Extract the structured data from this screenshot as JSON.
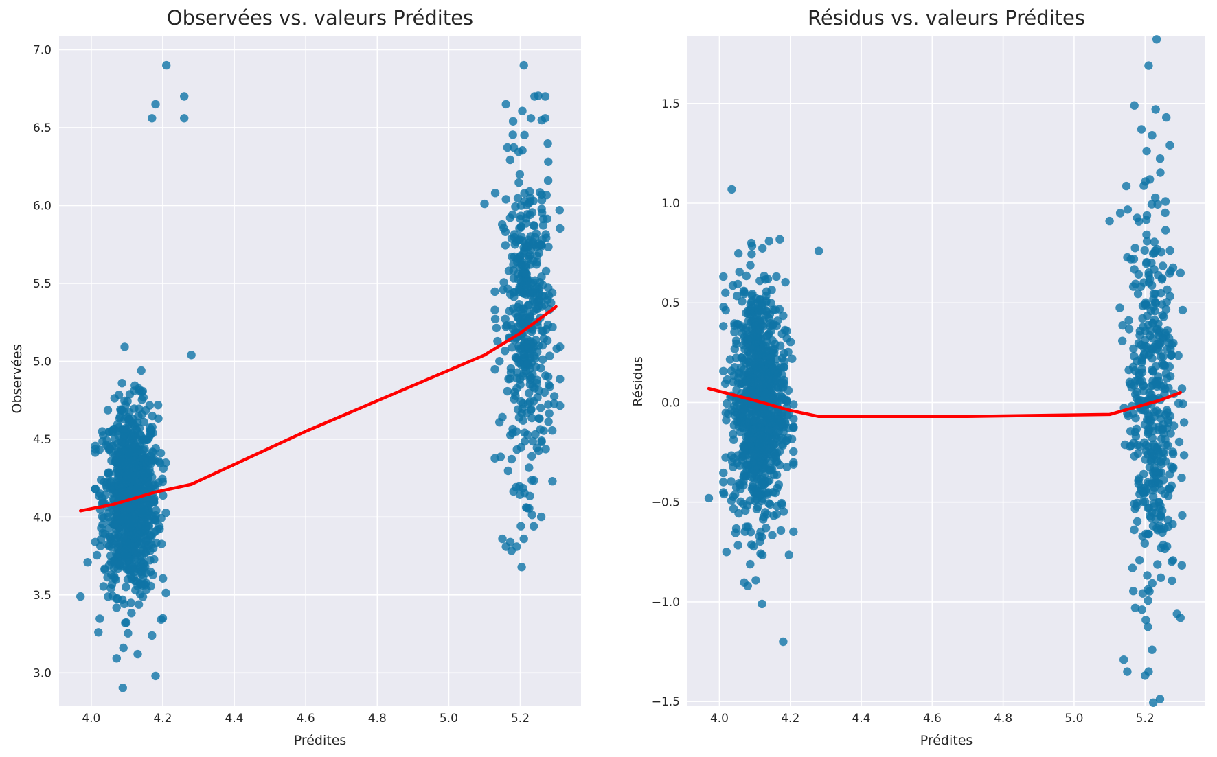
{
  "chart_data": [
    {
      "type": "scatter",
      "title": "Observées vs. valeurs Prédites",
      "xlabel": "Prédites",
      "ylabel": "Observées",
      "xlim": [
        3.91,
        5.37
      ],
      "ylim": [
        2.79,
        7.09
      ],
      "xticks": [
        4.0,
        4.2,
        4.4,
        4.6,
        4.8,
        5.0,
        5.2
      ],
      "xtick_labels": [
        "4.0",
        "4.2",
        "4.4",
        "4.6",
        "4.8",
        "5.0",
        "5.2"
      ],
      "yticks": [
        3.0,
        3.5,
        4.0,
        4.5,
        5.0,
        5.5,
        6.0,
        6.5,
        7.0
      ],
      "ytick_labels": [
        "3.0",
        "3.5",
        "4.0",
        "4.5",
        "5.0",
        "5.5",
        "6.0",
        "6.5",
        "7.0"
      ],
      "grid": true,
      "point_color": "#0f74a6",
      "line_color": "#ff0000",
      "lowess": {
        "x": [
          3.97,
          4.06,
          4.12,
          4.18,
          4.28,
          4.6,
          5.1,
          5.2,
          5.3
        ],
        "y": [
          4.04,
          4.08,
          4.12,
          4.16,
          4.21,
          4.55,
          5.04,
          5.18,
          5.35
        ]
      },
      "clusters": [
        {
          "n": 900,
          "x_mean": 4.11,
          "x_sd": 0.038,
          "y_mean": 4.11,
          "y_sd": 0.3
        },
        {
          "n": 420,
          "x_mean": 5.22,
          "x_sd": 0.035,
          "y_mean": 5.25,
          "y_sd": 0.5
        }
      ],
      "points": [
        [
          3.97,
          3.49
        ],
        [
          4.02,
          3.26
        ],
        [
          4.18,
          2.98
        ],
        [
          4.13,
          3.12
        ],
        [
          4.28,
          5.04
        ],
        [
          4.21,
          6.9
        ],
        [
          4.26,
          6.7
        ],
        [
          4.18,
          6.65
        ],
        [
          4.26,
          6.56
        ],
        [
          4.17,
          6.56
        ],
        [
          5.21,
          6.9
        ],
        [
          5.16,
          6.65
        ],
        [
          5.24,
          6.7
        ],
        [
          5.27,
          6.7
        ],
        [
          5.18,
          6.54
        ],
        [
          5.23,
          6.56
        ],
        [
          5.27,
          6.56
        ],
        [
          5.1,
          6.01
        ],
        [
          5.13,
          6.08
        ],
        [
          5.31,
          5.97
        ],
        [
          5.15,
          3.86
        ],
        [
          5.16,
          3.81
        ],
        [
          5.19,
          3.81
        ],
        [
          5.21,
          3.86
        ],
        [
          5.29,
          4.23
        ],
        [
          3.99,
          3.71
        ],
        [
          4.09,
          3.16
        ],
        [
          4.17,
          3.24
        ],
        [
          4.2,
          3.35
        ],
        [
          4.14,
          4.94
        ]
      ]
    },
    {
      "type": "scatter",
      "title": "Résidus vs. valeurs Prédites",
      "xlabel": "Prédites",
      "ylabel": "Résidus",
      "xlim": [
        3.91,
        5.37
      ],
      "ylim": [
        -1.52,
        1.84
      ],
      "xticks": [
        4.0,
        4.2,
        4.4,
        4.6,
        4.8,
        5.0,
        5.2
      ],
      "xtick_labels": [
        "4.0",
        "4.2",
        "4.4",
        "4.6",
        "4.8",
        "5.0",
        "5.2"
      ],
      "yticks": [
        -1.5,
        -1.0,
        -0.5,
        0.0,
        0.5,
        1.0,
        1.5
      ],
      "ytick_labels": [
        "−1.5",
        "−1.0",
        "−0.5",
        "0.0",
        "0.5",
        "1.0",
        "1.5"
      ],
      "grid": true,
      "point_color": "#0f74a6",
      "line_color": "#ff0000",
      "lowess": {
        "x": [
          3.97,
          4.1,
          4.2,
          4.28,
          4.7,
          5.1,
          5.18,
          5.24,
          5.3
        ],
        "y": [
          0.07,
          0.01,
          -0.04,
          -0.07,
          -0.07,
          -0.06,
          -0.02,
          0.01,
          0.05
        ]
      },
      "clusters": [
        {
          "n": 900,
          "x_mean": 4.11,
          "x_sd": 0.038,
          "y_mean": 0.0,
          "y_sd": 0.3
        },
        {
          "n": 420,
          "x_mean": 5.22,
          "x_sd": 0.035,
          "y_mean": 0.03,
          "y_sd": 0.5
        }
      ],
      "points": [
        [
          3.97,
          -0.48
        ],
        [
          4.02,
          -0.75
        ],
        [
          4.18,
          -1.2
        ],
        [
          4.28,
          0.76
        ],
        [
          4.12,
          -1.01
        ],
        [
          4.08,
          -0.92
        ],
        [
          5.21,
          1.69
        ],
        [
          5.17,
          1.49
        ],
        [
          5.23,
          1.47
        ],
        [
          5.26,
          1.43
        ],
        [
          5.19,
          1.37
        ],
        [
          5.22,
          1.34
        ],
        [
          5.27,
          1.29
        ],
        [
          5.1,
          0.91
        ],
        [
          5.13,
          0.95
        ],
        [
          5.3,
          0.65
        ],
        [
          5.14,
          -1.29
        ],
        [
          5.15,
          -1.35
        ],
        [
          5.2,
          -1.37
        ],
        [
          5.21,
          -1.35
        ],
        [
          5.22,
          -1.24
        ],
        [
          5.3,
          -1.08
        ],
        [
          5.29,
          -1.06
        ],
        [
          4.09,
          0.8
        ],
        [
          4.14,
          0.81
        ]
      ]
    }
  ]
}
